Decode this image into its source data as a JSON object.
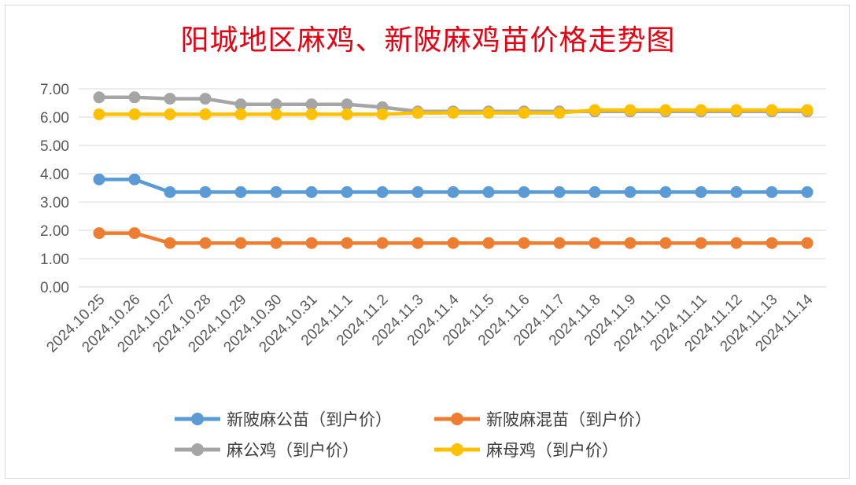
{
  "chart_data": {
    "type": "line",
    "title": "阳城地区麻鸡、新陂麻鸡苗价格走势图",
    "xlabel": "",
    "ylabel": "",
    "ylim": [
      0,
      7
    ],
    "yticks": [
      "0.00",
      "1.00",
      "2.00",
      "3.00",
      "4.00",
      "5.00",
      "6.00",
      "7.00"
    ],
    "grid": true,
    "legend_position": "bottom",
    "categories": [
      "2024.10.25",
      "2024.10.26",
      "2024.10.27",
      "2024.10.28",
      "2024.10.29",
      "2024.10.30",
      "2024.10.31",
      "2024.11.1",
      "2024.11.2",
      "2024.11.3",
      "2024.11.4",
      "2024.11.5",
      "2024.11.6",
      "2024.11.7",
      "2024.11.8",
      "2024.11.9",
      "2024.11.10",
      "2024.11.11",
      "2024.11.12",
      "2024.11.13",
      "2024.11.14"
    ],
    "series": [
      {
        "name": "新陂麻公苗（到户价）",
        "color": "#5b9bd5",
        "values": [
          3.8,
          3.8,
          3.35,
          3.35,
          3.35,
          3.35,
          3.35,
          3.35,
          3.35,
          3.35,
          3.35,
          3.35,
          3.35,
          3.35,
          3.35,
          3.35,
          3.35,
          3.35,
          3.35,
          3.35,
          3.35
        ]
      },
      {
        "name": "新陂麻混苗（到户价）",
        "color": "#ed7d31",
        "values": [
          1.9,
          1.9,
          1.55,
          1.55,
          1.55,
          1.55,
          1.55,
          1.55,
          1.55,
          1.55,
          1.55,
          1.55,
          1.55,
          1.55,
          1.55,
          1.55,
          1.55,
          1.55,
          1.55,
          1.55,
          1.55
        ]
      },
      {
        "name": "麻公鸡（到户价）",
        "color": "#a5a5a5",
        "values": [
          6.7,
          6.7,
          6.65,
          6.65,
          6.45,
          6.45,
          6.45,
          6.45,
          6.35,
          6.2,
          6.2,
          6.2,
          6.2,
          6.2,
          6.2,
          6.2,
          6.2,
          6.2,
          6.2,
          6.2,
          6.2
        ]
      },
      {
        "name": "麻母鸡（到户价）",
        "color": "#ffc000",
        "values": [
          6.1,
          6.1,
          6.1,
          6.1,
          6.1,
          6.1,
          6.1,
          6.1,
          6.1,
          6.15,
          6.15,
          6.15,
          6.15,
          6.15,
          6.25,
          6.25,
          6.25,
          6.25,
          6.25,
          6.25,
          6.25
        ]
      }
    ]
  }
}
